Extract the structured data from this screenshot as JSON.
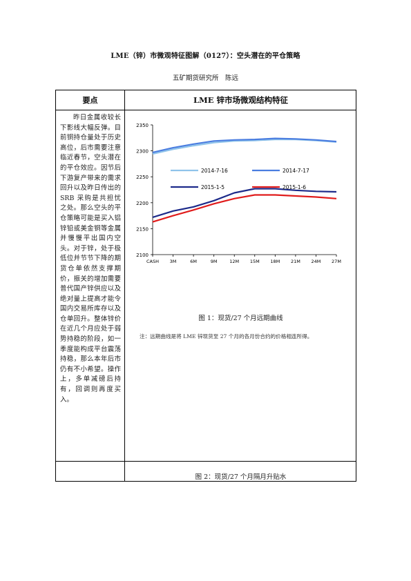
{
  "header": {
    "title": "LME（锌）市微观特征图解（0127）：空头潜在的平仓策略",
    "author": "五矿期货研究所　陈远"
  },
  "table": {
    "col_left_header": "要点",
    "col_right_header": "LME 锌市场微观结构特征",
    "key_points": "昨日金属收较长下影线大幅反弹。目前铜持仓量处于历史高位，后市需要注意临近春节，空头潜在的平仓效应。因节后下游复产带来的需求回升以及昨日传出的 SRB 采购是共担忧之处。那么空头的平仓策略可能是买入铝锌铅或美金铜等金属并慢慢平出国内空头。对于锌，处于极低位并节节下降的期货仓单依然支撑期价，振关的增加需要普代国产锌供应以及绝对量上提高才能令国内交易所库存以及仓单回升。整体锌价在近几个月应处于弱势持稳的阶段，如一季度能构成平台震荡持稳，那么本年后市仍有不小希望。操作上，多单减磅后持有，回调则再度买入。"
  },
  "figure1": {
    "caption": "图 1：现货/27 个月远期曲线",
    "note": "注：远期曲线是将 LME 锌现货至 27 个月的各月份合约的价格相连所得。"
  },
  "figure2": {
    "caption": "图 2：现货/27 个月隔月升贴水"
  },
  "chart_data": {
    "type": "line",
    "x": [
      "CASH",
      "3M",
      "6M",
      "9M",
      "12M",
      "15M",
      "18M",
      "21M",
      "24M",
      "27M"
    ],
    "ylim": [
      2100,
      2350
    ],
    "yticks": [
      2100,
      2150,
      2200,
      2250,
      2300,
      2350
    ],
    "grid": false,
    "legend_position": "center",
    "series": [
      {
        "name": "2014-7-16",
        "color": "#8fc3ea",
        "values": [
          2294,
          2303,
          2310,
          2316,
          2319,
          2320,
          2322,
          2322,
          2320,
          2317
        ]
      },
      {
        "name": "2014-7-17",
        "color": "#4a7de0",
        "values": [
          2297,
          2306,
          2313,
          2319,
          2321,
          2322,
          2324,
          2323,
          2321,
          2318
        ]
      },
      {
        "name": "2015-1-5",
        "color": "#1c2a8a",
        "values": [
          2172,
          2184,
          2192,
          2204,
          2219,
          2227,
          2227,
          2224,
          2222,
          2221
        ]
      },
      {
        "name": "2015-1-6",
        "color": "#e01b1b",
        "values": [
          2163,
          2175,
          2186,
          2198,
          2208,
          2215,
          2215,
          2213,
          2211,
          2208
        ]
      }
    ]
  }
}
